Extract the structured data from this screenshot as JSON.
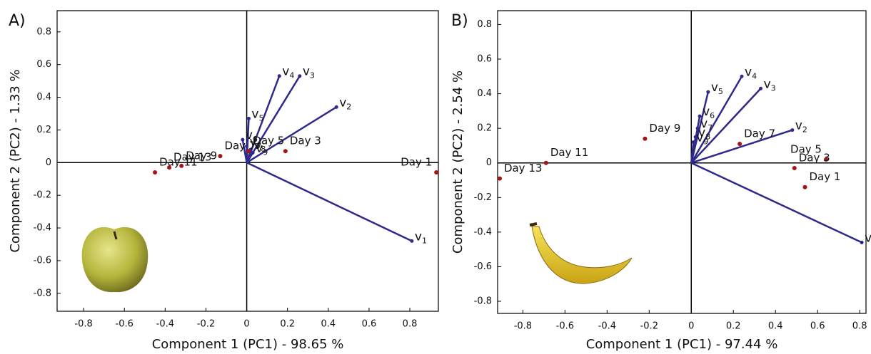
{
  "chart_data": [
    {
      "type": "biplot",
      "panel_label": "A)",
      "xlabel": "Component 1 (PC1) - 98.65 %",
      "ylabel": "Component 2 (PC2) - 1.33 %",
      "xlim": [
        -0.93,
        0.94
      ],
      "ylim": [
        -0.91,
        0.93
      ],
      "xticks": [
        -0.8,
        -0.6,
        -0.4,
        -0.2,
        0,
        0.2,
        0.4,
        0.6,
        0.8
      ],
      "yticks": [
        -0.8,
        -0.6,
        -0.4,
        -0.2,
        0,
        0.2,
        0.4,
        0.6,
        0.8
      ],
      "point_color": "#a31515",
      "vector_color": "#2e2a8c",
      "points": [
        {
          "name": "Day 1",
          "x": 0.93,
          "y": -0.06
        },
        {
          "name": "Day 3",
          "x": 0.19,
          "y": 0.07
        },
        {
          "name": "Day 5",
          "x": 0.01,
          "y": 0.07
        },
        {
          "name": "Day 7",
          "x": -0.13,
          "y": 0.04
        },
        {
          "name": "Day 9",
          "x": -0.32,
          "y": -0.02
        },
        {
          "name": "Day 13",
          "x": -0.38,
          "y": -0.03
        },
        {
          "name": "Day 11",
          "x": -0.45,
          "y": -0.06
        }
      ],
      "vectors": [
        {
          "base": "v",
          "sub": "1",
          "x": 0.81,
          "y": -0.48
        },
        {
          "base": "v",
          "sub": "2",
          "x": 0.44,
          "y": 0.34
        },
        {
          "base": "v",
          "sub": "3",
          "x": 0.26,
          "y": 0.53
        },
        {
          "base": "v",
          "sub": "4",
          "x": 0.16,
          "y": 0.53
        },
        {
          "base": "v",
          "sub": "5",
          "x": 0.01,
          "y": 0.27
        },
        {
          "base": "v",
          "sub": "6",
          "x": -0.02,
          "y": 0.14
        },
        {
          "base": "v",
          "sub": "7",
          "x": 0.0,
          "y": 0.1
        },
        {
          "base": "v",
          "sub": "8",
          "x": 0.02,
          "y": 0.08
        },
        {
          "base": "v",
          "sub": "9",
          "x": 0.03,
          "y": 0.06
        }
      ]
    },
    {
      "type": "biplot",
      "panel_label": "B)",
      "xlabel": "Component 1 (PC1) - 97.44 %",
      "ylabel": "Component 2 (PC2) - 2.54 %",
      "xlim": [
        -0.92,
        0.83
      ],
      "ylim": [
        -0.87,
        0.88
      ],
      "xticks": [
        -0.8,
        -0.6,
        -0.4,
        -0.2,
        0,
        0.2,
        0.4,
        0.6,
        0.8
      ],
      "yticks": [
        -0.8,
        -0.6,
        -0.4,
        -0.2,
        0,
        0.2,
        0.4,
        0.6,
        0.8
      ],
      "point_color": "#a31515",
      "vector_color": "#2e2a8c",
      "points": [
        {
          "name": "Day 13",
          "x": -0.91,
          "y": -0.09
        },
        {
          "name": "Day 11",
          "x": -0.69,
          "y": 0.0
        },
        {
          "name": "Day 9",
          "x": -0.22,
          "y": 0.14
        },
        {
          "name": "Day 7",
          "x": 0.23,
          "y": 0.11
        },
        {
          "name": "Day 5",
          "x": 0.64,
          "y": 0.02
        },
        {
          "name": "Day 3",
          "x": 0.49,
          "y": -0.03
        },
        {
          "name": "Day 1",
          "x": 0.54,
          "y": -0.14
        }
      ],
      "vectors": [
        {
          "base": "v",
          "x": 0.81,
          "y": -0.46
        },
        {
          "base": "v",
          "sub": "2",
          "x": 0.48,
          "y": 0.19
        },
        {
          "base": "v",
          "sub": "3",
          "x": 0.33,
          "y": 0.43
        },
        {
          "base": "v",
          "sub": "4",
          "x": 0.24,
          "y": 0.5
        },
        {
          "base": "v",
          "sub": "5",
          "x": 0.08,
          "y": 0.41
        },
        {
          "base": "v",
          "sub": "6",
          "x": 0.04,
          "y": 0.27
        },
        {
          "base": "v",
          "sub": "7",
          "x": 0.03,
          "y": 0.2
        },
        {
          "base": "v",
          "sub": "8",
          "x": 0.02,
          "y": 0.15
        },
        {
          "base": "v",
          "sub": "9",
          "x": 0.01,
          "y": 0.12
        }
      ]
    }
  ]
}
